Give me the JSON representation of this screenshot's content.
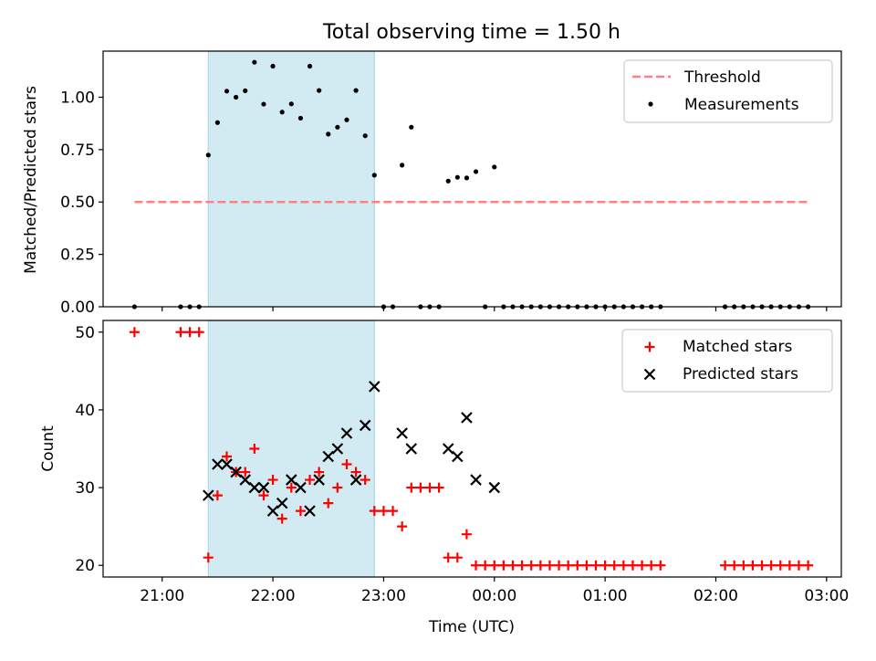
{
  "title": "Total observing time = 1.50 h",
  "colors": {
    "threshold": "#ff8080",
    "measurement": "#000000",
    "matched": "#ff0000",
    "predicted": "#000000",
    "highlight": "#add8e6"
  },
  "chart_data": [
    {
      "type": "scatter",
      "ylabel": "Matched/Predicted stars",
      "ylim": [
        0,
        1.22
      ],
      "yticks": [
        "0.00",
        "0.25",
        "0.50",
        "0.75",
        "1.00"
      ],
      "legend": {
        "position": "top-right",
        "entries": [
          "Threshold",
          "Measurements"
        ]
      },
      "threshold": {
        "name": "Threshold",
        "value": 0.5,
        "x_start": "20:45",
        "x_end": "02:50"
      },
      "highlight": {
        "start": "21:25",
        "end": "22:55"
      },
      "series": [
        {
          "name": "Measurements",
          "points": [
            [
              "20:45",
              0.0
            ],
            [
              "21:10",
              0.0
            ],
            [
              "21:15",
              0.0
            ],
            [
              "21:20",
              0.0
            ],
            [
              "21:25",
              0.724
            ],
            [
              "21:30",
              0.879
            ],
            [
              "21:35",
              1.029
            ],
            [
              "21:40",
              1.0
            ],
            [
              "21:45",
              1.031
            ],
            [
              "21:50",
              1.167
            ],
            [
              "21:55",
              0.967
            ],
            [
              "22:00",
              1.148
            ],
            [
              "22:05",
              0.929
            ],
            [
              "22:10",
              0.968
            ],
            [
              "22:15",
              0.9
            ],
            [
              "22:20",
              1.148
            ],
            [
              "22:25",
              1.032
            ],
            [
              "22:30",
              0.824
            ],
            [
              "22:35",
              0.857
            ],
            [
              "22:40",
              0.892
            ],
            [
              "22:45",
              1.032
            ],
            [
              "22:50",
              0.816
            ],
            [
              "22:55",
              0.628
            ],
            [
              "23:00",
              0.0
            ],
            [
              "23:05",
              0.0
            ],
            [
              "23:10",
              0.676
            ],
            [
              "23:15",
              0.857
            ],
            [
              "23:20",
              0.0
            ],
            [
              "23:25",
              0.0
            ],
            [
              "23:30",
              0.0
            ],
            [
              "23:35",
              0.6
            ],
            [
              "23:40",
              0.618
            ],
            [
              "23:45",
              0.615
            ],
            [
              "23:50",
              0.645
            ],
            [
              "23:55",
              0.0
            ],
            [
              "00:00",
              0.667
            ],
            [
              "00:05",
              0.0
            ],
            [
              "00:10",
              0.0
            ],
            [
              "00:15",
              0.0
            ],
            [
              "00:20",
              0.0
            ],
            [
              "00:25",
              0.0
            ],
            [
              "00:30",
              0.0
            ],
            [
              "00:35",
              0.0
            ],
            [
              "00:40",
              0.0
            ],
            [
              "00:45",
              0.0
            ],
            [
              "00:50",
              0.0
            ],
            [
              "00:55",
              0.0
            ],
            [
              "01:00",
              0.0
            ],
            [
              "01:05",
              0.0
            ],
            [
              "01:10",
              0.0
            ],
            [
              "01:15",
              0.0
            ],
            [
              "01:20",
              0.0
            ],
            [
              "01:25",
              0.0
            ],
            [
              "01:30",
              0.0
            ],
            [
              "02:05",
              0.0
            ],
            [
              "02:10",
              0.0
            ],
            [
              "02:15",
              0.0
            ],
            [
              "02:20",
              0.0
            ],
            [
              "02:25",
              0.0
            ],
            [
              "02:30",
              0.0
            ],
            [
              "02:35",
              0.0
            ],
            [
              "02:40",
              0.0
            ],
            [
              "02:45",
              0.0
            ],
            [
              "02:50",
              0.0
            ]
          ]
        }
      ]
    },
    {
      "type": "scatter",
      "xlabel": "Time (UTC)",
      "ylabel": "Count",
      "ylim": [
        18.5,
        51.5
      ],
      "yticks": [
        "20",
        "30",
        "40",
        "50"
      ],
      "xticks": [
        "21:00",
        "22:00",
        "23:00",
        "00:00",
        "01:00",
        "02:00",
        "03:00"
      ],
      "xlim": [
        "20:28",
        "03:08"
      ],
      "legend": {
        "position": "top-right",
        "entries": [
          "Matched stars",
          "Predicted stars"
        ]
      },
      "highlight": {
        "start": "21:25",
        "end": "22:55"
      },
      "series": [
        {
          "name": "Matched stars",
          "points": [
            [
              "20:45",
              50
            ],
            [
              "21:10",
              50
            ],
            [
              "21:15",
              50
            ],
            [
              "21:20",
              50
            ],
            [
              "21:25",
              21
            ],
            [
              "21:30",
              29
            ],
            [
              "21:35",
              34
            ],
            [
              "21:40",
              32
            ],
            [
              "21:45",
              32
            ],
            [
              "21:50",
              35
            ],
            [
              "21:55",
              29
            ],
            [
              "22:00",
              31
            ],
            [
              "22:05",
              26
            ],
            [
              "22:10",
              30
            ],
            [
              "22:15",
              27
            ],
            [
              "22:20",
              31
            ],
            [
              "22:25",
              32
            ],
            [
              "22:30",
              28
            ],
            [
              "22:35",
              30
            ],
            [
              "22:40",
              33
            ],
            [
              "22:45",
              32
            ],
            [
              "22:50",
              31
            ],
            [
              "22:55",
              27
            ],
            [
              "23:00",
              27
            ],
            [
              "23:05",
              27
            ],
            [
              "23:10",
              25
            ],
            [
              "23:15",
              30
            ],
            [
              "23:20",
              30
            ],
            [
              "23:25",
              30
            ],
            [
              "23:30",
              30
            ],
            [
              "23:35",
              21
            ],
            [
              "23:40",
              21
            ],
            [
              "23:45",
              24
            ],
            [
              "23:50",
              20
            ],
            [
              "23:55",
              20
            ],
            [
              "00:00",
              20
            ],
            [
              "00:05",
              20
            ],
            [
              "00:10",
              20
            ],
            [
              "00:15",
              20
            ],
            [
              "00:20",
              20
            ],
            [
              "00:25",
              20
            ],
            [
              "00:30",
              20
            ],
            [
              "00:35",
              20
            ],
            [
              "00:40",
              20
            ],
            [
              "00:45",
              20
            ],
            [
              "00:50",
              20
            ],
            [
              "00:55",
              20
            ],
            [
              "01:00",
              20
            ],
            [
              "01:05",
              20
            ],
            [
              "01:10",
              20
            ],
            [
              "01:15",
              20
            ],
            [
              "01:20",
              20
            ],
            [
              "01:25",
              20
            ],
            [
              "01:30",
              20
            ],
            [
              "02:05",
              20
            ],
            [
              "02:10",
              20
            ],
            [
              "02:15",
              20
            ],
            [
              "02:20",
              20
            ],
            [
              "02:25",
              20
            ],
            [
              "02:30",
              20
            ],
            [
              "02:35",
              20
            ],
            [
              "02:40",
              20
            ],
            [
              "02:45",
              20
            ],
            [
              "02:50",
              20
            ]
          ]
        },
        {
          "name": "Predicted stars",
          "points": [
            [
              "21:25",
              29
            ],
            [
              "21:30",
              33
            ],
            [
              "21:35",
              33
            ],
            [
              "21:40",
              32
            ],
            [
              "21:45",
              31
            ],
            [
              "21:50",
              30
            ],
            [
              "21:55",
              30
            ],
            [
              "22:00",
              27
            ],
            [
              "22:05",
              28
            ],
            [
              "22:10",
              31
            ],
            [
              "22:15",
              30
            ],
            [
              "22:20",
              27
            ],
            [
              "22:25",
              31
            ],
            [
              "22:30",
              34
            ],
            [
              "22:35",
              35
            ],
            [
              "22:40",
              37
            ],
            [
              "22:45",
              31
            ],
            [
              "22:50",
              38
            ],
            [
              "22:55",
              43
            ],
            [
              "23:10",
              37
            ],
            [
              "23:15",
              35
            ],
            [
              "23:35",
              35
            ],
            [
              "23:40",
              34
            ],
            [
              "23:45",
              39
            ],
            [
              "23:50",
              31
            ],
            [
              "00:00",
              30
            ]
          ]
        }
      ]
    }
  ]
}
